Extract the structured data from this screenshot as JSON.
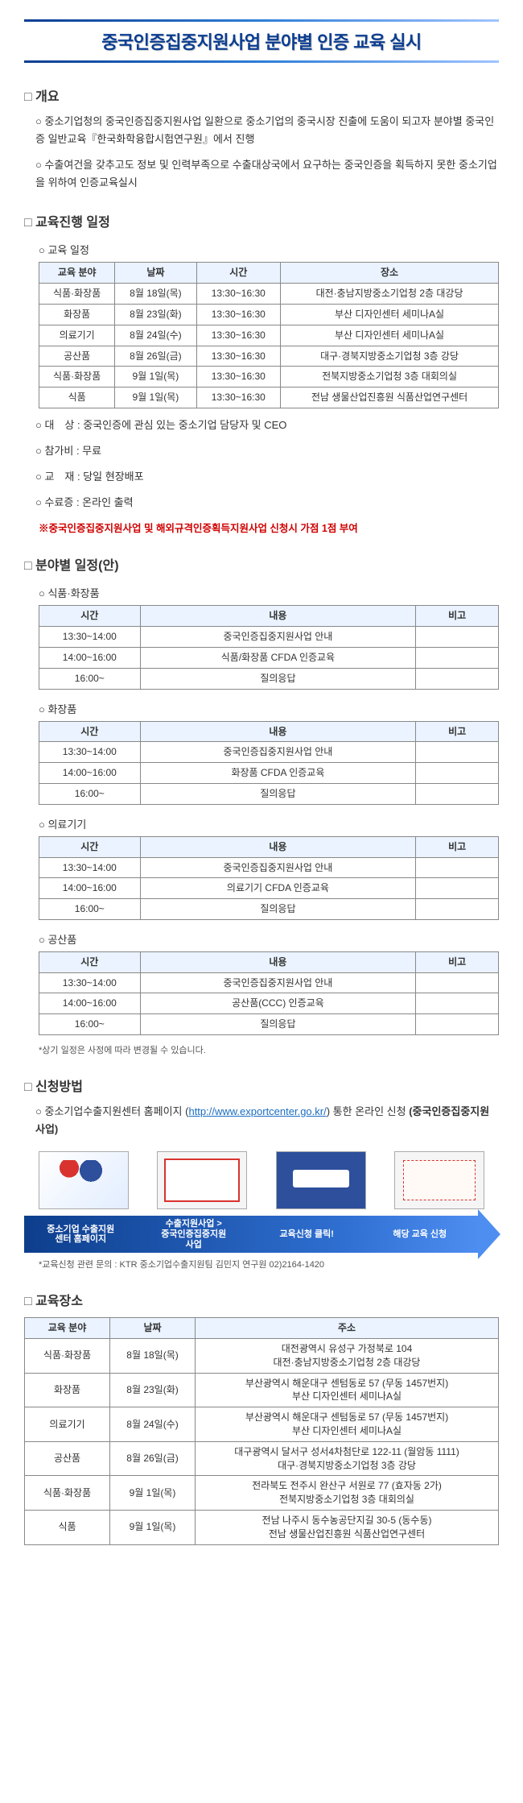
{
  "title": "중국인증집중지원사업 분야별 인증 교육 실시",
  "overview": {
    "heading": "개요",
    "items": [
      "중소기업청의 중국인증집중지원사업 일환으로 중소기업의 중국시장 진출에 도움이 되고자 분야별 중국인증 일반교육『한국화학융합시험연구원』에서 진행",
      "수출여건을 갖추고도 정보 및 인력부족으로 수출대상국에서 요구하는 중국인증을 획득하지 못한 중소기업을 위하여 인증교육실시"
    ]
  },
  "schedule": {
    "heading": "교육진행 일정",
    "sub": "교육 일정",
    "headers": [
      "교육 분야",
      "날짜",
      "시간",
      "장소"
    ],
    "rows": [
      [
        "식품·화장품",
        "8월 18일(목)",
        "13:30~16:30",
        "대전·충남지방중소기업청 2층 대강당"
      ],
      [
        "화장품",
        "8월 23일(화)",
        "13:30~16:30",
        "부산 디자인센터 세미나A실"
      ],
      [
        "의료기기",
        "8월 24일(수)",
        "13:30~16:30",
        "부산 디자인센터 세미나A실"
      ],
      [
        "공산품",
        "8월 26일(금)",
        "13:30~16:30",
        "대구·경북지방중소기업청 3층 강당"
      ],
      [
        "식품·화장품",
        "9월 1일(목)",
        "13:30~16:30",
        "전북지방중소기업청 3층 대회의실"
      ],
      [
        "식품",
        "9월 1일(목)",
        "13:30~16:30",
        "전남 생물산업진흥원 식품산업연구센터"
      ]
    ],
    "meta": [
      "대　상 : 중국인증에 관심 있는 중소기업 담당자 및 CEO",
      "참가비 : 무료",
      "교　재 : 당일 현장배포",
      "수료증 : 온라인 출력"
    ],
    "note": "※중국인증집중지원사업 및 해외규격인증획득지원사업 신청시 가점 1점 부여"
  },
  "detail": {
    "heading": "분야별 일정(안)",
    "blocks": [
      {
        "title": "식품·화장품",
        "headers": [
          "시간",
          "내용",
          "비고"
        ],
        "rows": [
          [
            "13:30~14:00",
            "중국인증집중지원사업 안내",
            ""
          ],
          [
            "14:00~16:00",
            "식품/화장품 CFDA 인증교육",
            ""
          ],
          [
            "16:00~",
            "질의응답",
            ""
          ]
        ]
      },
      {
        "title": "화장품",
        "headers": [
          "시간",
          "내용",
          "비고"
        ],
        "rows": [
          [
            "13:30~14:00",
            "중국인증집중지원사업 안내",
            ""
          ],
          [
            "14:00~16:00",
            "화장품 CFDA 인증교육",
            ""
          ],
          [
            "16:00~",
            "질의응답",
            ""
          ]
        ]
      },
      {
        "title": "의료기기",
        "headers": [
          "시간",
          "내용",
          "비고"
        ],
        "rows": [
          [
            "13:30~14:00",
            "중국인증집중지원사업 안내",
            ""
          ],
          [
            "14:00~16:00",
            "의료기기 CFDA 인증교육",
            ""
          ],
          [
            "16:00~",
            "질의응답",
            ""
          ]
        ]
      },
      {
        "title": "공산품",
        "headers": [
          "시간",
          "내용",
          "비고"
        ],
        "rows": [
          [
            "13:30~14:00",
            "중국인증집중지원사업 안내",
            ""
          ],
          [
            "14:00~16:00",
            "공산품(CCC) 인증교육",
            ""
          ],
          [
            "16:00~",
            "질의응답",
            ""
          ]
        ]
      }
    ],
    "footnote": "*상기 일정은 사정에 따라 변경될 수 있습니다."
  },
  "apply": {
    "heading": "신청방법",
    "line_pre": "중소기업수출지원센터 홈페이지 (",
    "link": "http://www.exportcenter.go.kr/",
    "line_post": ") 통한 온라인 신청 ",
    "line_bold": "(중국인증집중지원사업)",
    "flow_labels": [
      "중소기업 수출지원\n센터 홈페이지",
      "수출지원사업 >\n중국인증집중지원\n사업",
      "교육신청 클릭!",
      "해당 교육 신청"
    ],
    "footnote": "*교육신청 관련 문의 : KTR 중소기업수출지원팀 김민지 연구원 02)2164-1420"
  },
  "place": {
    "heading": "교육장소",
    "headers": [
      "교육 분야",
      "날짜",
      "주소"
    ],
    "rows": [
      [
        "식품·화장품",
        "8월 18일(목)",
        "대전광역시 유성구 가정북로 104\n대전·충남지방중소기업청 2층 대강당"
      ],
      [
        "화장품",
        "8월 23일(화)",
        "부산광역시 해운대구 센텀동로 57 (무동 1457번지)\n부산 디자인센터 세미나A실"
      ],
      [
        "의료기기",
        "8월 24일(수)",
        "부산광역시 해운대구 센텀동로 57 (무동 1457번지)\n부산 디자인센터 세미나A실"
      ],
      [
        "공산품",
        "8월 26일(금)",
        "대구광역시 달서구 성서4차첨단로 122-11 (월암동 1111)\n대구·경북지방중소기업청 3층 강당"
      ],
      [
        "식품·화장품",
        "9월 1일(목)",
        "전라북도 전주시 완산구 서원로 77 (효자동 2가)\n전북지방중소기업청 3층 대회의실"
      ],
      [
        "식품",
        "9월 1일(목)",
        "전남 나주시 동수농공단지길 30-5 (동수동)\n전남 생물산업진흥원 식품산업연구센터"
      ]
    ]
  },
  "colors": {
    "header_bg": "#eaf3ff",
    "border": "#888888",
    "title": "#0a3d91",
    "note_red": "#d00000",
    "arrow_start": "#0d3e8c",
    "arrow_end": "#4e8ef0",
    "link": "#1a6dc2"
  }
}
